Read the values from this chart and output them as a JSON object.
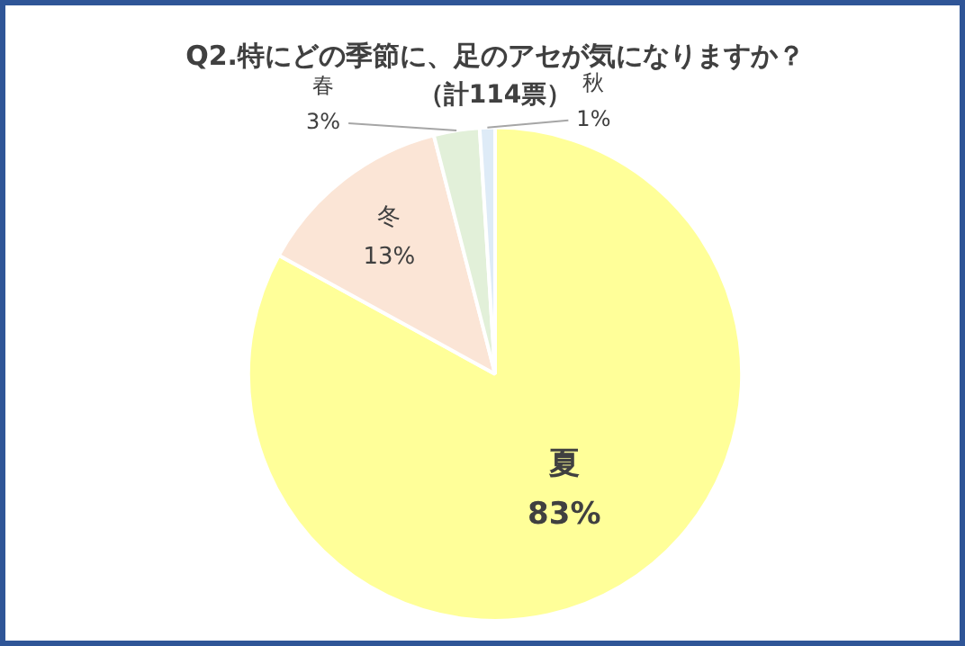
{
  "chart_data": {
    "type": "pie",
    "title": "Q2.特にどの季節に、足のアセが気になりますか？",
    "subtitle": "（計114票）",
    "categories": [
      "夏",
      "冬",
      "春",
      "秋"
    ],
    "values": [
      83,
      13,
      3,
      1
    ],
    "value_labels": [
      "83%",
      "13%",
      "3%",
      "1%"
    ],
    "colors": [
      "#ffff99",
      "#fbe5d6",
      "#e2f0d9",
      "#deebf7"
    ],
    "legend": false
  }
}
